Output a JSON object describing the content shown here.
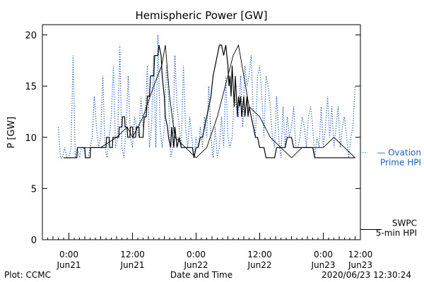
{
  "chart_data": {
    "type": "line",
    "title": "Hemispheric Power [GW]",
    "ylabel": "P [GW]",
    "xlabel": "Date and Time",
    "ylim": [
      0,
      21
    ],
    "xlim_hours": [
      -5,
      55
    ],
    "yticks": [
      0,
      5,
      10,
      15,
      20
    ],
    "xticks": [
      {
        "value": 0,
        "time": "0:00",
        "date": "Jun21"
      },
      {
        "value": 12,
        "time": "12:00",
        "date": "Jun21"
      },
      {
        "value": 24,
        "time": "0:00",
        "date": "Jun22"
      },
      {
        "value": 36,
        "time": "12:00",
        "date": "Jun22"
      },
      {
        "value": 48,
        "time": "0:00",
        "date": "Jun23"
      },
      {
        "value": 60,
        "time": "12:00",
        "date": "Jun23"
      }
    ],
    "series": [
      {
        "name_lines": [
          "— Ovation",
          "Prime HPI"
        ],
        "color": "#1f5fbf",
        "style": "dotted",
        "x": [
          -2.0,
          -1.6,
          -1.2,
          -0.8,
          -0.4,
          0.0,
          0.4,
          0.8,
          1.2,
          1.6,
          2.0,
          2.4,
          2.8,
          3.2,
          3.6,
          4.0,
          4.4,
          4.8,
          5.2,
          5.6,
          6.0,
          6.4,
          6.8,
          7.2,
          7.6,
          8.0,
          8.4,
          8.8,
          9.2,
          9.6,
          10.0,
          10.4,
          10.8,
          11.2,
          11.6,
          12.0,
          12.4,
          12.8,
          13.2,
          13.6,
          14.0,
          14.4,
          14.8,
          15.2,
          15.6,
          16.0,
          16.4,
          16.8,
          17.2,
          17.6,
          18.0,
          18.4,
          18.8,
          19.2,
          19.6,
          20.0,
          20.4,
          20.8,
          21.2,
          21.6,
          22.0,
          22.4,
          22.8,
          23.2,
          23.6,
          24.0,
          24.4,
          24.8,
          25.2,
          25.6,
          26.0,
          26.4,
          26.8,
          27.2,
          27.6,
          28.0,
          28.4,
          28.8,
          29.2,
          29.6,
          30.0,
          30.4,
          30.8,
          31.2,
          31.6,
          32.0,
          32.4,
          32.8,
          33.2,
          33.6,
          34.0,
          34.4,
          34.8,
          35.2,
          35.6,
          36.0,
          36.4,
          36.8,
          37.2,
          37.6,
          38.0,
          38.4,
          38.8,
          39.2,
          39.6,
          40.0,
          40.4,
          40.8,
          41.2,
          41.6,
          42.0,
          42.4,
          42.8,
          43.2,
          43.6,
          44.0,
          44.4,
          44.8,
          45.2,
          45.6,
          46.0,
          46.4,
          46.8,
          47.2,
          47.6,
          48.0,
          48.4,
          48.8,
          49.2,
          49.6,
          50.0,
          50.4,
          50.8,
          51.2,
          51.6,
          52.0,
          52.4,
          52.8,
          53.2,
          53.6,
          54.0
        ],
        "y": [
          11,
          8,
          8,
          9,
          8,
          8,
          9,
          18,
          8,
          9,
          8,
          9,
          9,
          8,
          8,
          9,
          10,
          14,
          11,
          9,
          10,
          16,
          9,
          8,
          10,
          12,
          17,
          9,
          10,
          19,
          9,
          8,
          11,
          16,
          10,
          9,
          12,
          11,
          10,
          14,
          11,
          12,
          17,
          9,
          11,
          18,
          9,
          20,
          11,
          9,
          11,
          17,
          14,
          8,
          9,
          18,
          13,
          11,
          9,
          17,
          11,
          9,
          12,
          10,
          8,
          10,
          9,
          11,
          9,
          12,
          10,
          15,
          10,
          8,
          11,
          8,
          9,
          12,
          9,
          16,
          10,
          9,
          10,
          14,
          13,
          12,
          16,
          11,
          17,
          15,
          16,
          18,
          12,
          10,
          16,
          17,
          14,
          10,
          16,
          15,
          13,
          10,
          9,
          14,
          10,
          8,
          13,
          9,
          12,
          10,
          11,
          13,
          9,
          9,
          10,
          12,
          11,
          9,
          12,
          13,
          11,
          8,
          10,
          9,
          13,
          9,
          11,
          14,
          10,
          13,
          9,
          11,
          13,
          9,
          11,
          12,
          10,
          8,
          10,
          11,
          15
        ]
      },
      {
        "name_lines": [
          "SWPC",
          "5-min HPI"
        ],
        "color": "#000000",
        "style": "solid",
        "x": [
          -1.0,
          1.5,
          1.6,
          3.0,
          3.1,
          4.0,
          4.1,
          5.0,
          5.1,
          7.0,
          7.1,
          7.6,
          7.7,
          8.2,
          8.3,
          8.8,
          8.9,
          9.4,
          9.5,
          10.0,
          10.1,
          10.5,
          10.6,
          11.0,
          11.1,
          11.5,
          11.6,
          12.0,
          12.1,
          12.6,
          12.7,
          13.2,
          13.3,
          14.0,
          14.2,
          14.6,
          14.8,
          15.2,
          15.4,
          16.0,
          16.2,
          16.8,
          17.0,
          17.4,
          17.6,
          18.0,
          18.2,
          18.6,
          18.8,
          19.2,
          19.4,
          19.8,
          20.0,
          20.4,
          20.8,
          21.2,
          21.6,
          22.0,
          22.3,
          22.6,
          23.0,
          23.3,
          23.6,
          24.0,
          24.4,
          24.8,
          25.2,
          25.6,
          26.0,
          26.4,
          26.8,
          27.2,
          27.6,
          28.0,
          28.4,
          28.8,
          29.2,
          29.6,
          30.0,
          30.2,
          30.4,
          30.6,
          30.8,
          31.0,
          31.2,
          31.4,
          31.6,
          31.8,
          32.0,
          32.2,
          32.4,
          32.6,
          32.8,
          33.0,
          33.2,
          33.4,
          33.6,
          33.8,
          34.0,
          34.4,
          34.8,
          35.2,
          35.6,
          36.0,
          36.4,
          36.8,
          37.2,
          37.6,
          38.0,
          38.4,
          38.8,
          39.2,
          39.6,
          40.0,
          40.4,
          40.8,
          41.2,
          41.6,
          42.0,
          42.4,
          42.8,
          43.2,
          43.6,
          44.0,
          44.4,
          44.8,
          45.2,
          45.6,
          46.0,
          46.4,
          46.8,
          47.2,
          47.6,
          48.0,
          48.4,
          48.8,
          49.2,
          49.6,
          50.0,
          50.4,
          50.8,
          51.2,
          51.6,
          52.0,
          52.4,
          52.8,
          53.2,
          53.6,
          54.0
        ],
        "y": [
          8,
          8,
          9,
          9,
          8,
          8,
          9,
          9,
          9,
          9,
          10,
          10,
          9,
          9,
          10,
          10,
          10,
          10,
          11,
          11,
          12,
          12,
          11,
          11,
          10,
          10,
          11,
          11,
          10,
          10,
          11,
          11,
          10,
          10,
          12,
          12,
          14,
          14,
          16,
          16,
          18,
          18,
          19,
          18,
          16,
          14,
          12,
          11,
          10,
          9,
          11,
          9,
          11,
          9,
          10,
          9,
          9,
          9,
          9,
          9,
          9,
          9,
          8,
          9,
          9,
          10,
          10,
          11,
          12,
          13,
          14,
          16,
          17,
          18,
          19,
          19,
          18,
          19,
          17,
          15,
          16,
          14,
          17,
          15,
          13,
          16,
          14,
          12,
          14,
          13,
          14,
          12,
          13,
          14,
          12,
          13,
          14,
          12,
          13,
          12,
          11,
          10,
          10,
          9,
          9,
          9,
          8,
          8,
          8,
          8,
          8,
          9,
          9,
          9,
          9,
          9,
          10,
          10,
          10,
          9,
          9,
          9,
          9,
          9,
          9,
          9,
          9,
          9,
          9,
          8,
          8,
          8,
          8,
          8,
          8,
          8,
          8,
          8,
          8,
          8,
          8,
          8,
          8,
          8,
          8,
          8,
          8,
          8,
          8
        ]
      },
      {
        "name_lines": [],
        "color": "#000000",
        "style": "solid-thin",
        "x": [
          3.0,
          6.0,
          9.0,
          11.0,
          12.0,
          14.0,
          16.0,
          17.5,
          18.2,
          19.0,
          20.0,
          22.0,
          24.0,
          26.0,
          28.0,
          30.0,
          31.0,
          32.0,
          33.0,
          34.0,
          36.0,
          38.0,
          40.0,
          42.0,
          44.0,
          46.0,
          48.0,
          50.0,
          52.0,
          54.0
        ],
        "y": [
          9,
          9,
          10,
          11,
          10,
          12,
          15,
          17,
          19,
          14,
          10,
          9,
          8,
          9,
          12,
          16,
          18,
          19,
          16,
          13,
          12,
          10,
          9,
          8,
          9,
          9,
          9,
          10,
          9,
          8
        ]
      }
    ]
  },
  "footer": {
    "plot_label": "Plot: CCMC",
    "timestamp": "2020/06/23 12:30:24"
  }
}
